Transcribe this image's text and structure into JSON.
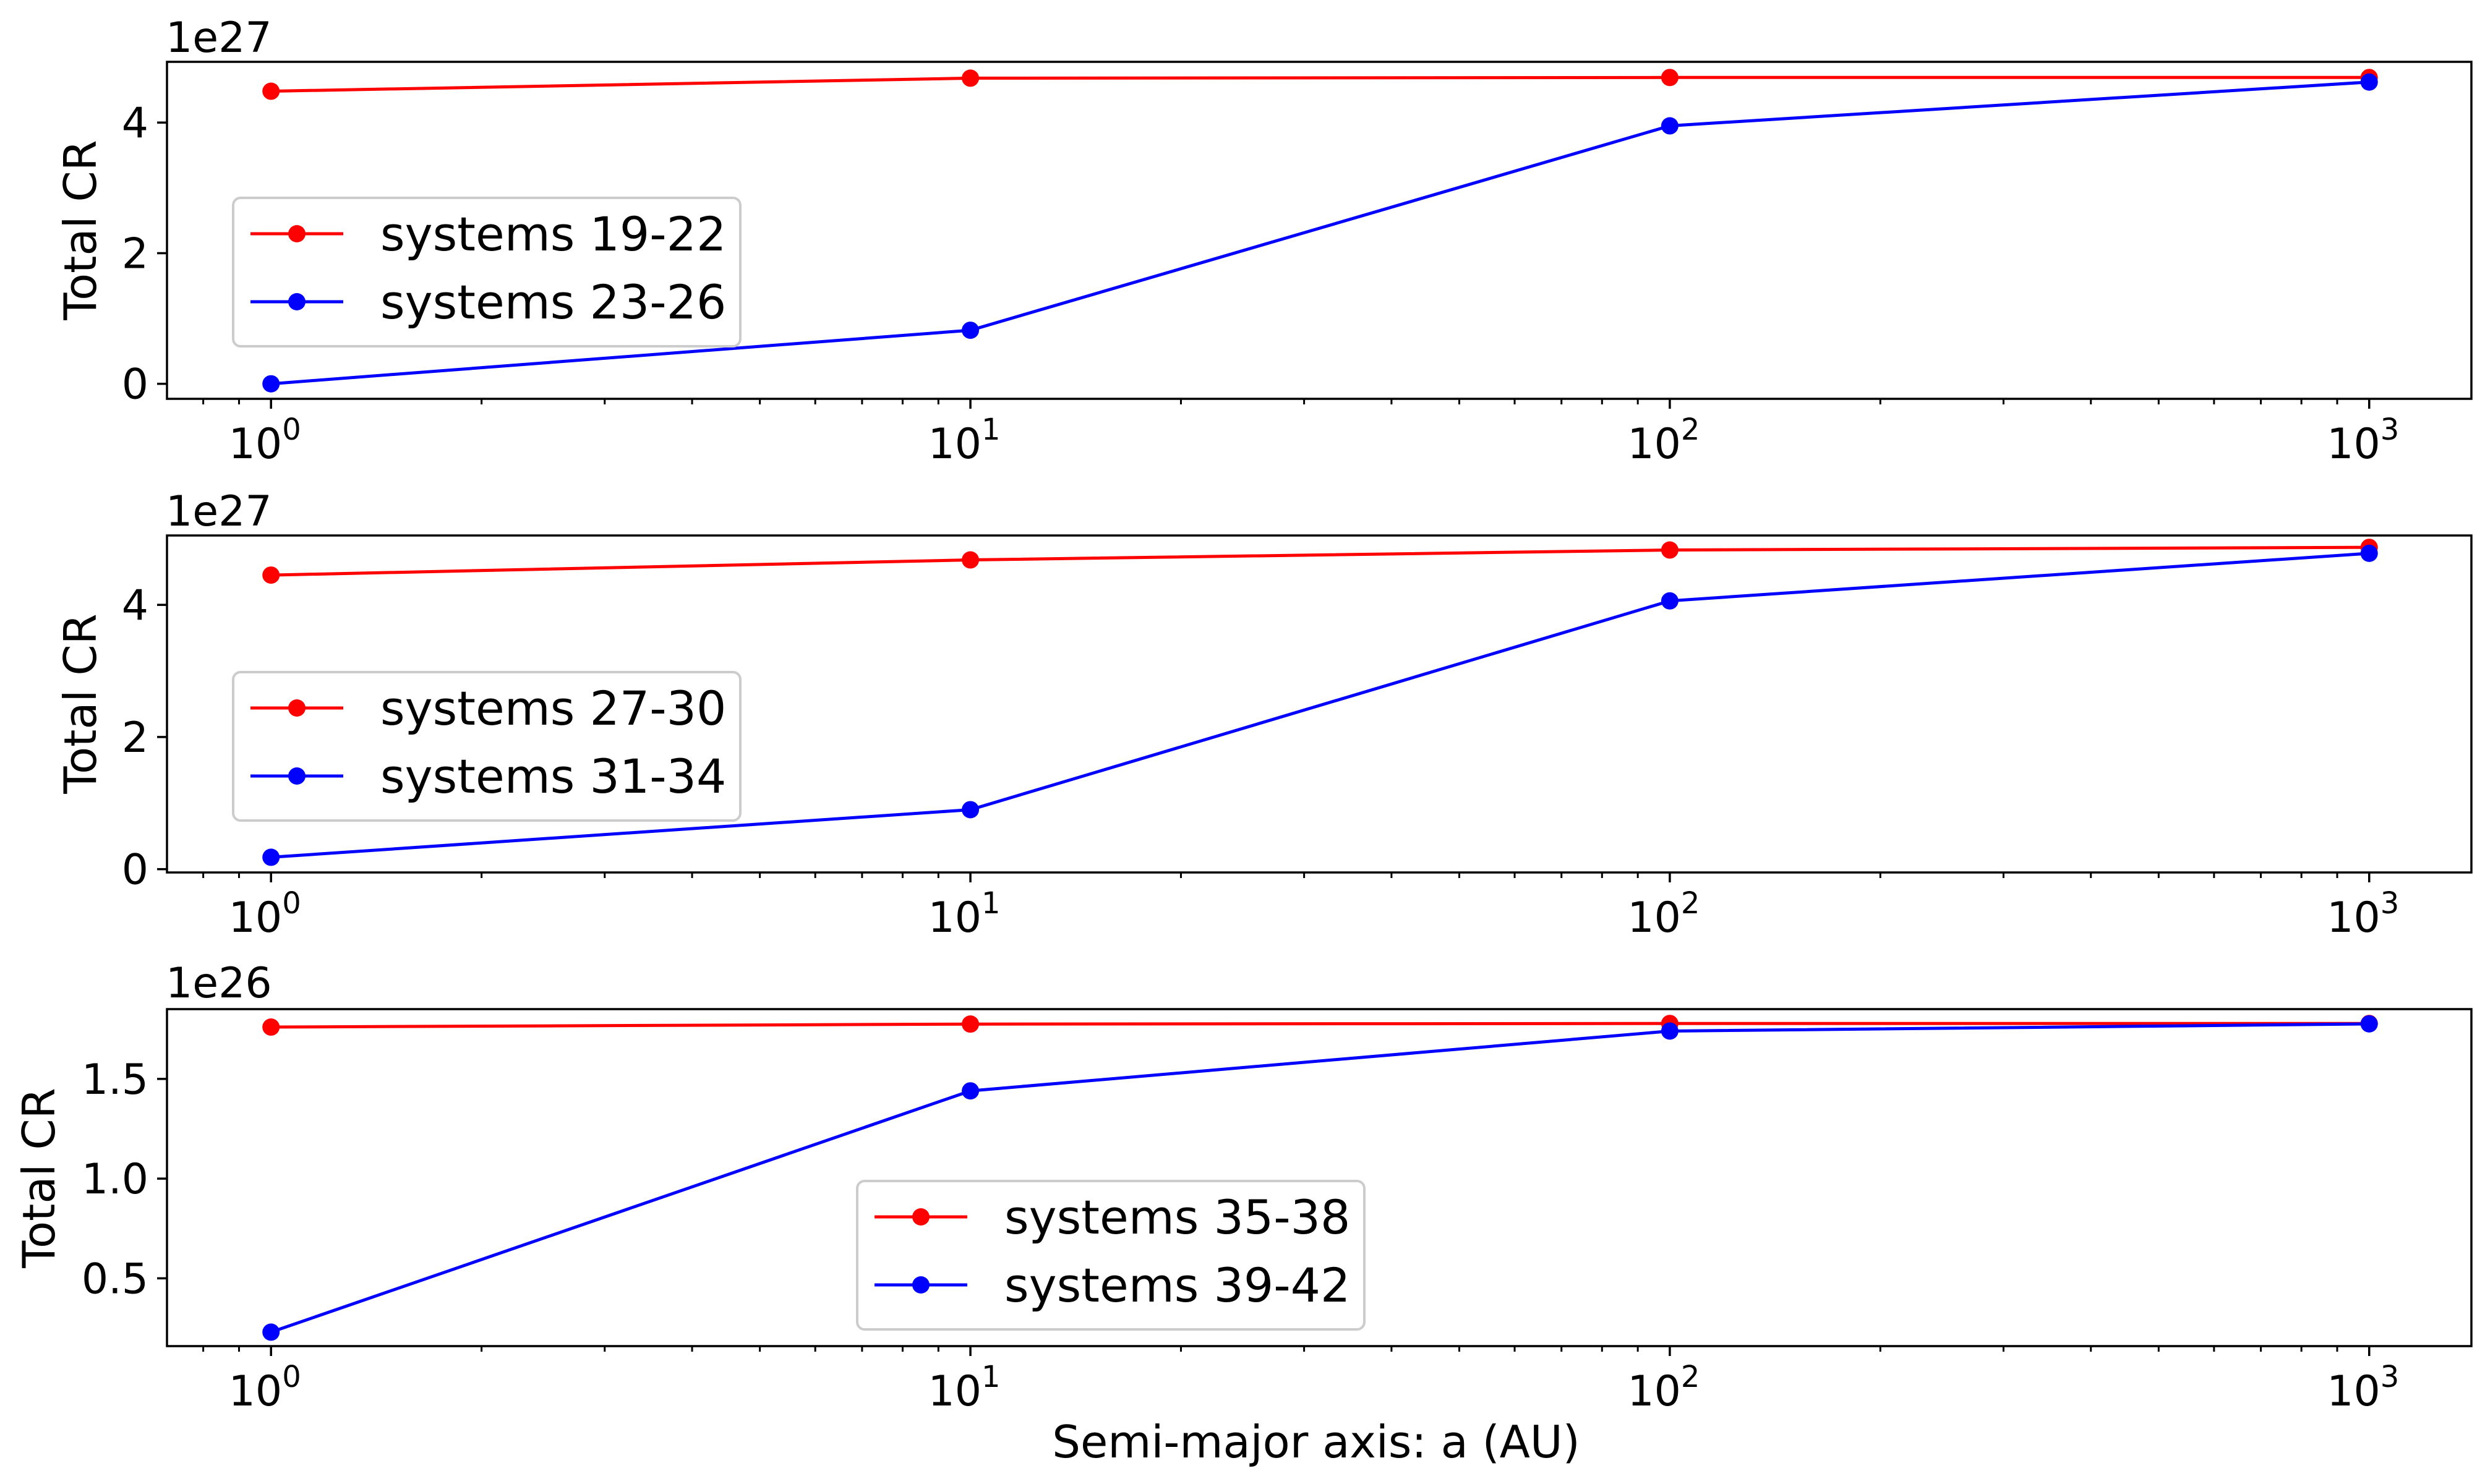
{
  "colors": {
    "red": "#ff0000",
    "blue": "#0000ff",
    "axes": "#000000",
    "legend_border": "#cccccc"
  },
  "figure": {
    "xlabel": "Semi-major axis: a (AU)"
  },
  "chart_data": [
    {
      "type": "line",
      "x": [
        1,
        10,
        100,
        1000
      ],
      "xscale": "log",
      "xlim": [
        0.71,
        1400
      ],
      "xticks": [
        {
          "base": "10",
          "exp": "0"
        },
        {
          "base": "10",
          "exp": "1"
        },
        {
          "base": "10",
          "exp": "2"
        },
        {
          "base": "10",
          "exp": "3"
        }
      ],
      "ylabel": "Total CR",
      "multiplier": "1e27",
      "ylim": [
        -2.3e+26,
        4.93e+27
      ],
      "yticks": [
        0,
        2e+27,
        4e+27
      ],
      "yticklabels": [
        "0",
        "2",
        "4"
      ],
      "legend_position": "center-left",
      "series": [
        {
          "name": "systems 19-22",
          "color": "red",
          "values": [
            4.48e+27,
            4.68e+27,
            4.69e+27,
            4.69e+27
          ]
        },
        {
          "name": "systems 23-26",
          "color": "blue",
          "values": [
            0.0,
            8.2e+26,
            3.95e+27,
            4.62e+27
          ]
        }
      ]
    },
    {
      "type": "line",
      "x": [
        1,
        10,
        100,
        1000
      ],
      "xscale": "log",
      "xlim": [
        0.71,
        1400
      ],
      "xticks": [
        {
          "base": "10",
          "exp": "0"
        },
        {
          "base": "10",
          "exp": "1"
        },
        {
          "base": "10",
          "exp": "2"
        },
        {
          "base": "10",
          "exp": "3"
        }
      ],
      "ylabel": "Total CR",
      "multiplier": "1e27",
      "ylim": [
        -5e+25,
        5.05e+27
      ],
      "yticks": [
        0,
        2e+27,
        4e+27
      ],
      "yticklabels": [
        "0",
        "2",
        "4"
      ],
      "legend_position": "center-left",
      "series": [
        {
          "name": "systems 27-30",
          "color": "red",
          "values": [
            4.45e+27,
            4.68e+27,
            4.83e+27,
            4.87e+27
          ]
        },
        {
          "name": "systems 31-34",
          "color": "blue",
          "values": [
            1.8e+26,
            9e+26,
            4.06e+27,
            4.78e+27
          ]
        }
      ]
    },
    {
      "type": "line",
      "x": [
        1,
        10,
        100,
        1000
      ],
      "xscale": "log",
      "xlim": [
        0.71,
        1400
      ],
      "xticks": [
        {
          "base": "10",
          "exp": "0"
        },
        {
          "base": "10",
          "exp": "1"
        },
        {
          "base": "10",
          "exp": "2"
        },
        {
          "base": "10",
          "exp": "3"
        }
      ],
      "ylabel": "Total CR",
      "multiplier": "1e26",
      "ylim": [
        1.6e+25,
        1.85e+26
      ],
      "yticks": [
        5e+25,
        1e+26,
        1.5e+26
      ],
      "yticklabels": [
        "0.5",
        "1.0",
        "1.5"
      ],
      "legend_position": "lower-center",
      "series": [
        {
          "name": "systems 35-38",
          "color": "red",
          "values": [
            1.76e+26,
            1.775e+26,
            1.778e+26,
            1.778e+26
          ]
        },
        {
          "name": "systems 39-42",
          "color": "blue",
          "values": [
            2.3e+25,
            1.44e+26,
            1.74e+26,
            1.776e+26
          ]
        }
      ]
    }
  ]
}
